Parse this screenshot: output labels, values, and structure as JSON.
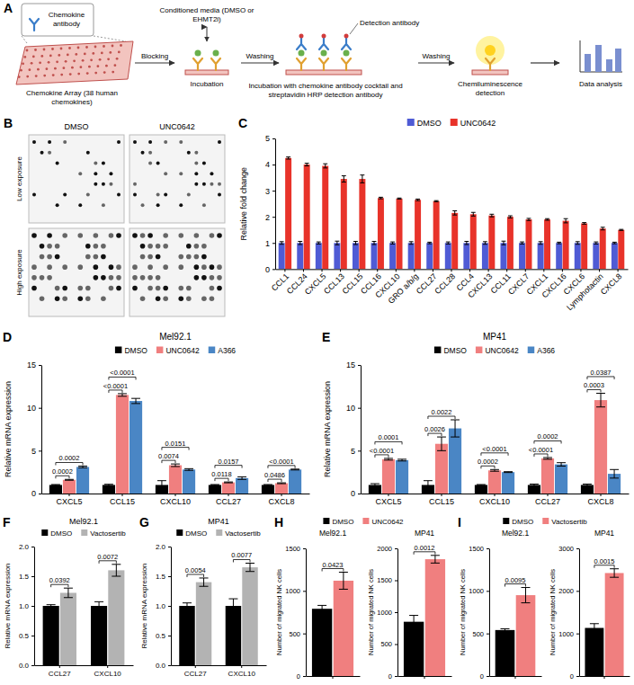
{
  "diagram": {
    "panel": "A",
    "inset": "Chemokine antibody",
    "array": "Chemokine Array (38 human chemokines)",
    "media": "Conditioned media (DMSO or EHMT2i)",
    "detection_antibody": "Detection antibody",
    "arrows": [
      "Blocking",
      "Washing",
      "Washing"
    ],
    "steps": [
      "Incubation",
      "Incubation with chemokine antibody cocktail and streptavidin HRP detection antibody",
      "Chemiluminescence detection",
      "Data analysis"
    ]
  },
  "blot": {
    "panel": "B",
    "columns": [
      "DMSO",
      "UNC0642"
    ],
    "rows": [
      "Low exposure",
      "High exposure"
    ]
  },
  "chart_data": [
    {
      "panel": "C",
      "type": "bar",
      "categories": [
        "CCL1",
        "CCL24",
        "CXCL5",
        "CCL13",
        "CCL15",
        "CCL16",
        "CXCL10",
        "GRO a/b/g",
        "CCL27",
        "CCL28",
        "CCL4",
        "CXCL13",
        "CCL11",
        "CXCL7",
        "CXCL1",
        "CXCL16",
        "CXCL6",
        "Lymphotactin",
        "CXCL8"
      ],
      "series": [
        {
          "name": "DMSO",
          "color": "#4f5bd5",
          "values": [
            1,
            1,
            1,
            1,
            1,
            1,
            1,
            1,
            1,
            1,
            1,
            1,
            1,
            1,
            1,
            1,
            1,
            1,
            1
          ],
          "errors": [
            0.05,
            0.06,
            0.04,
            0.07,
            0.06,
            0.06,
            0.04,
            0.05,
            0.03,
            0.04,
            0.06,
            0.05,
            0.07,
            0.04,
            0.05,
            0.03,
            0.05,
            0.04,
            0.03
          ]
        },
        {
          "name": "UNC0642",
          "color": "#e8332a",
          "values": [
            4.25,
            4.0,
            3.95,
            3.45,
            3.45,
            2.72,
            2.7,
            2.65,
            2.6,
            2.15,
            2.1,
            2.05,
            2.0,
            1.9,
            1.9,
            1.85,
            1.75,
            1.55,
            1.5
          ],
          "errors": [
            0.04,
            0.05,
            0.08,
            0.12,
            0.15,
            0.03,
            0.02,
            0.03,
            0.02,
            0.08,
            0.07,
            0.05,
            0.04,
            0.04,
            0.03,
            0.08,
            0.03,
            0.05,
            0.02
          ]
        }
      ],
      "y_label": "Relative fold change",
      "ylim": [
        0,
        5
      ],
      "yticks": [
        0,
        1,
        2,
        3,
        4,
        5
      ],
      "legend": "top"
    },
    {
      "panel": "D",
      "type": "bar",
      "title": "Mel92.1",
      "categories": [
        "CXCL5",
        "CCL15",
        "CXCL10",
        "CCL27",
        "CXCL8"
      ],
      "series": [
        {
          "name": "DMSO",
          "color": "#000000",
          "values": [
            1,
            1,
            1,
            1,
            1
          ],
          "errors": [
            0.05,
            0.08,
            0.5,
            0.05,
            0.05
          ]
        },
        {
          "name": "UNC0642",
          "color": "#f07f7f",
          "values": [
            1.6,
            11.5,
            3.3,
            1.3,
            1.2
          ],
          "errors": [
            0.05,
            0.15,
            0.15,
            0.05,
            0.05
          ]
        },
        {
          "name": "A366",
          "color": "#4a86c5",
          "values": [
            3.1,
            10.8,
            2.8,
            1.8,
            2.8
          ],
          "errors": [
            0.1,
            0.3,
            0.1,
            0.15,
            0.05
          ]
        }
      ],
      "y_label": "Relative mRNA expression",
      "ylim": [
        0,
        15
      ],
      "yticks": [
        0,
        5,
        10,
        15
      ],
      "legend": "top",
      "annotations": [
        {
          "category": "CXCL5",
          "between": [
            "DMSO",
            "UNC0642"
          ],
          "label": "0.0002"
        },
        {
          "category": "CXCL5",
          "between": [
            "DMSO",
            "A366"
          ],
          "label": "0.0002"
        },
        {
          "category": "CCL15",
          "between": [
            "DMSO",
            "UNC0642"
          ],
          "label": "<0.0001"
        },
        {
          "category": "CCL15",
          "between": [
            "DMSO",
            "A366"
          ],
          "label": "<0.0001"
        },
        {
          "category": "CXCL10",
          "between": [
            "DMSO",
            "UNC0642"
          ],
          "label": "0.0074"
        },
        {
          "category": "CXCL10",
          "between": [
            "DMSO",
            "A366"
          ],
          "label": "0.0151"
        },
        {
          "category": "CCL27",
          "between": [
            "DMSO",
            "UNC0642"
          ],
          "label": "0.0118"
        },
        {
          "category": "CCL27",
          "between": [
            "DMSO",
            "A366"
          ],
          "label": "0.0157"
        },
        {
          "category": "CXCL8",
          "between": [
            "DMSO",
            "UNC0642"
          ],
          "label": "0.0486"
        },
        {
          "category": "CXCL8",
          "between": [
            "DMSO",
            "A366"
          ],
          "label": "<0.0001"
        }
      ]
    },
    {
      "panel": "E",
      "type": "bar",
      "title": "MP41",
      "categories": [
        "CXCL5",
        "CCL15",
        "CXCL10",
        "CCL27",
        "CXCL8"
      ],
      "series": [
        {
          "name": "DMSO",
          "color": "#000000",
          "values": [
            1,
            1,
            1,
            1,
            1
          ],
          "errors": [
            0.15,
            0.5,
            0.05,
            0.1,
            0.1
          ]
        },
        {
          "name": "UNC0642",
          "color": "#f07f7f",
          "values": [
            4.0,
            5.8,
            2.7,
            4.1,
            10.9
          ],
          "errors": [
            0.1,
            0.8,
            0.1,
            0.1,
            0.8
          ]
        },
        {
          "name": "A366",
          "color": "#4a86c5",
          "values": [
            3.9,
            7.6,
            2.5,
            3.4,
            2.3
          ],
          "errors": [
            0.1,
            1.0,
            0.05,
            0.2,
            0.5
          ]
        }
      ],
      "y_label": "Relative mRNA expression",
      "ylim": [
        0,
        15
      ],
      "yticks": [
        0,
        5,
        10,
        15
      ],
      "legend": "top",
      "annotations": [
        {
          "category": "CXCL5",
          "between": [
            "DMSO",
            "UNC0642"
          ],
          "label": "<0.0001"
        },
        {
          "category": "CXCL5",
          "between": [
            "DMSO",
            "A366"
          ],
          "label": "0.0001"
        },
        {
          "category": "CCL15",
          "between": [
            "DMSO",
            "UNC0642"
          ],
          "label": "0.0026"
        },
        {
          "category": "CCL15",
          "between": [
            "DMSO",
            "A366"
          ],
          "label": "0.0022"
        },
        {
          "category": "CXCL10",
          "between": [
            "DMSO",
            "UNC0642"
          ],
          "label": "0.0002"
        },
        {
          "category": "CXCL10",
          "between": [
            "DMSO",
            "A366"
          ],
          "label": "<0.0001"
        },
        {
          "category": "CCL27",
          "between": [
            "DMSO",
            "UNC0642"
          ],
          "label": "<0.0001"
        },
        {
          "category": "CCL27",
          "between": [
            "DMSO",
            "A366"
          ],
          "label": "0.0002"
        },
        {
          "category": "CXCL8",
          "between": [
            "DMSO",
            "UNC0642"
          ],
          "label": "0.0003"
        },
        {
          "category": "CXCL8",
          "between": [
            "DMSO",
            "A366"
          ],
          "label": "0.0387"
        }
      ]
    },
    {
      "panel": "F",
      "type": "bar",
      "title": "Mel92.1",
      "categories": [
        "CCL27",
        "CXCL10"
      ],
      "series": [
        {
          "name": "DMSO",
          "color": "#000000",
          "values": [
            1.0,
            1.0
          ],
          "errors": [
            0.02,
            0.07
          ]
        },
        {
          "name": "Vactosertib",
          "color": "#b3b3b3",
          "values": [
            1.22,
            1.6
          ],
          "errors": [
            0.08,
            0.1
          ]
        }
      ],
      "y_label": "Relative mRNA expression",
      "ylim": [
        0,
        2
      ],
      "yticks": [
        {
          "value": 0,
          "label": "0.0"
        },
        0.5,
        {
          "value": 1,
          "label": "1.0"
        },
        1.5,
        {
          "value": 2,
          "label": "2.0"
        }
      ],
      "legend": "top",
      "annotations": [
        {
          "category": "CCL27",
          "between": [
            "DMSO",
            "Vactosertib"
          ],
          "label": "0.0392"
        },
        {
          "category": "CXCL10",
          "between": [
            "DMSO",
            "Vactosertib"
          ],
          "label": "0.0072"
        }
      ]
    },
    {
      "panel": "G",
      "type": "bar",
      "title": "MP41",
      "categories": [
        "CCL27",
        "CXCL10"
      ],
      "series": [
        {
          "name": "DMSO",
          "color": "#000000",
          "values": [
            1.0,
            1.0
          ],
          "errors": [
            0.05,
            0.12
          ]
        },
        {
          "name": "Vactosertib",
          "color": "#b3b3b3",
          "values": [
            1.4,
            1.65
          ],
          "errors": [
            0.07,
            0.07
          ]
        }
      ],
      "y_label": "Relative mRNA expression",
      "ylim": [
        0,
        2
      ],
      "yticks": [
        {
          "value": 0,
          "label": "0.0"
        },
        0.5,
        {
          "value": 1,
          "label": "1.0"
        },
        1.5,
        {
          "value": 2,
          "label": "2.0"
        }
      ],
      "legend": "top",
      "annotations": [
        {
          "category": "CCL27",
          "between": [
            "DMSO",
            "Vactosertib"
          ],
          "label": "0.0054"
        },
        {
          "category": "CXCL10",
          "between": [
            "DMSO",
            "Vactosertib"
          ],
          "label": "0.0077"
        }
      ]
    },
    {
      "panel": "H",
      "type": "bar",
      "title": "Mel92.1",
      "categories": [
        null
      ],
      "tick_labels": "y",
      "series": [
        {
          "name": "DMSO",
          "color": "#000000",
          "values": [
            790
          ],
          "errors": [
            40
          ]
        },
        {
          "name": "UNC0642",
          "color": "#f07f7f",
          "values": [
            1120
          ],
          "errors": [
            100
          ]
        }
      ],
      "y_label": "Number of migrated NK cells",
      "ylim": [
        0,
        1500
      ],
      "yticks": [
        0,
        500,
        1000,
        1500
      ],
      "legend": "top",
      "annotations": [
        {
          "between": [
            "DMSO",
            "UNC0642"
          ],
          "label": "0.0423"
        }
      ]
    },
    {
      "type": "bar",
      "title": "MP41",
      "categories": [
        null
      ],
      "tick_labels": "y",
      "series": [
        {
          "name": "DMSO",
          "color": "#000000",
          "values": [
            850
          ],
          "errors": [
            100
          ]
        },
        {
          "name": "UNC0642",
          "color": "#f07f7f",
          "values": [
            1830
          ],
          "errors": [
            60
          ]
        }
      ],
      "y_label": "Number of migrated NK cells",
      "ylim": [
        0,
        2000
      ],
      "yticks": [
        0,
        500,
        1000,
        1500,
        2000
      ],
      "annotations": [
        {
          "between": [
            "DMSO",
            "UNC0642"
          ],
          "label": "0.0012"
        }
      ]
    },
    {
      "panel": "I",
      "type": "bar",
      "title": "Mel92.1",
      "categories": [
        null
      ],
      "tick_labels": "y",
      "series": [
        {
          "name": "DMSO",
          "color": "#000000",
          "values": [
            540
          ],
          "errors": [
            15
          ]
        },
        {
          "name": "Vactosertib",
          "color": "#f07f7f",
          "values": [
            950
          ],
          "errors": [
            90
          ]
        }
      ],
      "y_label": "Number of migrated NK cells",
      "ylim": [
        0,
        1500
      ],
      "yticks": [
        0,
        500,
        1000,
        1500
      ],
      "legend": "top",
      "annotations": [
        {
          "between": [
            "DMSO",
            "Vactosertib"
          ],
          "label": "0.0095"
        }
      ]
    },
    {
      "type": "bar",
      "title": "MP41",
      "categories": [
        null
      ],
      "tick_labels": "y",
      "series": [
        {
          "name": "DMSO",
          "color": "#000000",
          "values": [
            1130
          ],
          "errors": [
            100
          ]
        },
        {
          "name": "Vactosertib",
          "color": "#f07f7f",
          "values": [
            2420
          ],
          "errors": [
            100
          ]
        }
      ],
      "y_label": "Number of migrated NK cells",
      "ylim": [
        0,
        3000
      ],
      "yticks": [
        0,
        1000,
        2000,
        3000
      ],
      "annotations": [
        {
          "between": [
            "DMSO",
            "Vactosertib"
          ],
          "label": "0.0015"
        }
      ]
    }
  ]
}
